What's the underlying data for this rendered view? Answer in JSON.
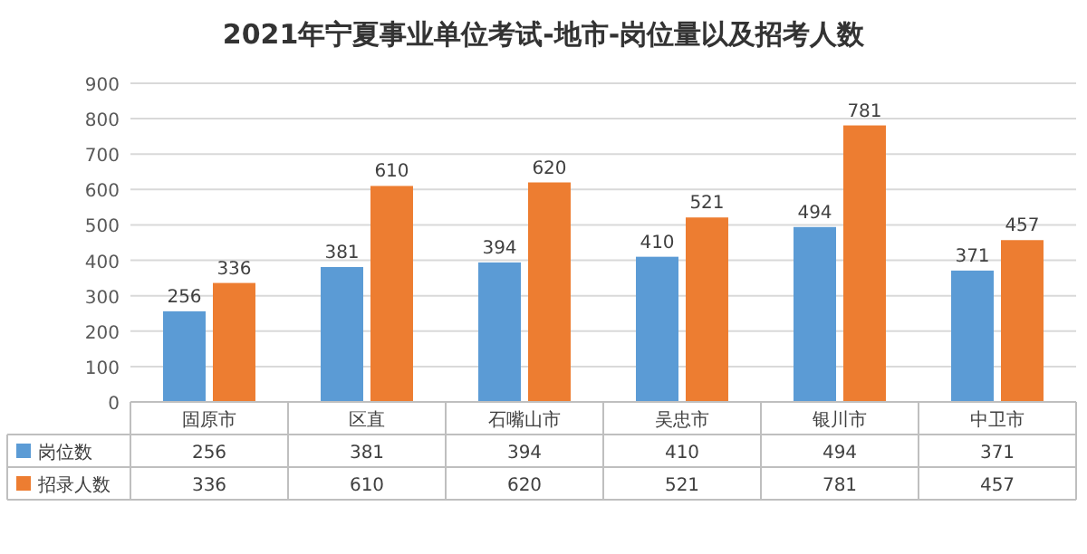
{
  "chart_data": {
    "type": "bar",
    "title": "2021年宁夏事业单位考试-地市-岗位量以及招考人数",
    "categories": [
      "固原市",
      "区直",
      "石嘴山市",
      "吴忠市",
      "银川市",
      "中卫市"
    ],
    "series": [
      {
        "name": "岗位数",
        "color": "#5b9bd5",
        "values": [
          256,
          381,
          394,
          410,
          494,
          371
        ]
      },
      {
        "name": "招录人数",
        "color": "#ed7d31",
        "values": [
          336,
          610,
          620,
          521,
          781,
          457
        ]
      }
    ],
    "ylim": [
      0,
      900
    ],
    "yticks": [
      0,
      100,
      200,
      300,
      400,
      500,
      600,
      700,
      800,
      900
    ],
    "grid": "y",
    "data_labels": true,
    "legend": "bottom",
    "annotations": [
      "256",
      "381",
      "394",
      "410",
      "494",
      "371",
      "336",
      "610",
      "620",
      "521",
      "781",
      "457"
    ]
  }
}
